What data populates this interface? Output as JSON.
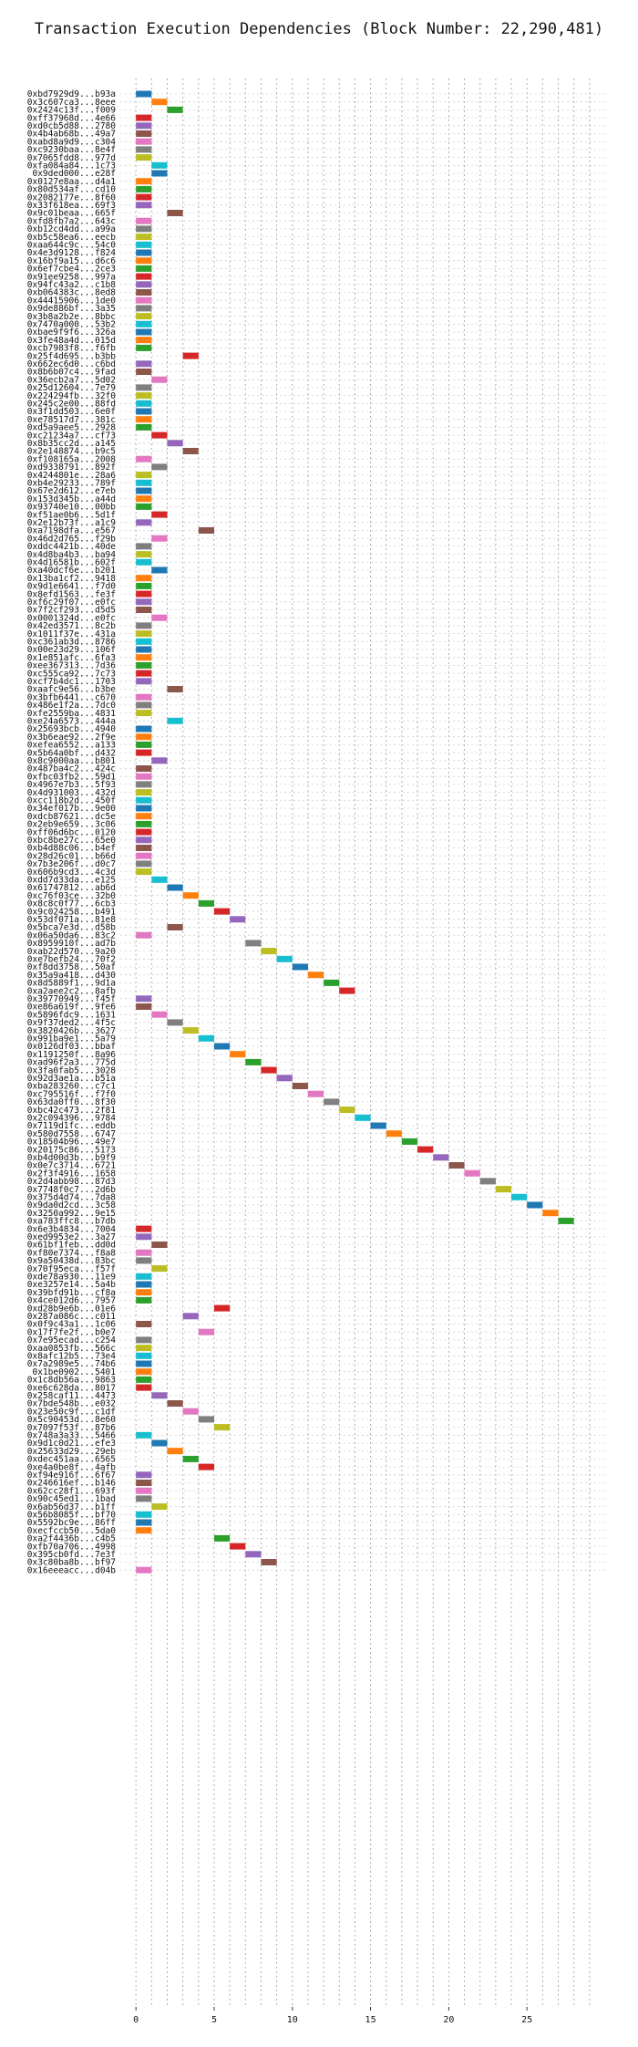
{
  "chart_data": {
    "type": "bar",
    "title": "Transaction Execution Dependencies (Block Number: 22,290,481)",
    "xlabel": "",
    "ylabel": "",
    "xlim": [
      -1,
      30
    ],
    "xticks": [
      0,
      5,
      10,
      15,
      20,
      25
    ],
    "grid": true,
    "bar_width": 1,
    "palette": [
      "#1f77b4",
      "#ff7f0e",
      "#2ca02c",
      "#d62728",
      "#9467bd",
      "#8c564b",
      "#e377c2",
      "#7f7f7f",
      "#bcbd22",
      "#17becf"
    ],
    "transactions": [
      {
        "hash": "0xbd7929d9...b93a",
        "start": 0,
        "color": 0
      },
      {
        "hash": "0x3c607ca3...8eee",
        "start": 1,
        "color": 1
      },
      {
        "hash": "0x2424c13f...f009",
        "start": 2,
        "color": 2
      },
      {
        "hash": "0xff37968d...4e66",
        "start": 0,
        "color": 3
      },
      {
        "hash": "0xd0cb5d88...2780",
        "start": 0,
        "color": 4
      },
      {
        "hash": "0x4b4ab68b...49a7",
        "start": 0,
        "color": 5
      },
      {
        "hash": "0xabd8a9d9...c304",
        "start": 0,
        "color": 6
      },
      {
        "hash": "0xc9230baa...8e4f",
        "start": 0,
        "color": 7
      },
      {
        "hash": "0x7065fdd8...977d",
        "start": 0,
        "color": 8
      },
      {
        "hash": "0xfa084a84...1c73",
        "start": 1,
        "color": 9
      },
      {
        "hash": "0x9ded000...e28f",
        "start": 1,
        "color": 0
      },
      {
        "hash": "0x0127e8aa...d4a1",
        "start": 0,
        "color": 1
      },
      {
        "hash": "0x80d534af...cd10",
        "start": 0,
        "color": 2
      },
      {
        "hash": "0x2082177e...8f60",
        "start": 0,
        "color": 3
      },
      {
        "hash": "0x33f618ea...69f3",
        "start": 0,
        "color": 4
      },
      {
        "hash": "0x9c01beaa...665f",
        "start": 2,
        "color": 5
      },
      {
        "hash": "0xfd8fb7a2...643c",
        "start": 0,
        "color": 6
      },
      {
        "hash": "0xb12cd4dd...a99a",
        "start": 0,
        "color": 7
      },
      {
        "hash": "0xb5c58ea6...eecb",
        "start": 0,
        "color": 8
      },
      {
        "hash": "0xaa644c9c...54c0",
        "start": 0,
        "color": 9
      },
      {
        "hash": "0x4e3d9128...f824",
        "start": 0,
        "color": 0
      },
      {
        "hash": "0x16bf9a15...d6c6",
        "start": 0,
        "color": 1
      },
      {
        "hash": "0x6ef7cbe4...2ce3",
        "start": 0,
        "color": 2
      },
      {
        "hash": "0x91ee9258...997a",
        "start": 0,
        "color": 3
      },
      {
        "hash": "0x94fc43a2...c1b8",
        "start": 0,
        "color": 4
      },
      {
        "hash": "0xb064383c...8ed8",
        "start": 0,
        "color": 5
      },
      {
        "hash": "0x44415906...1de0",
        "start": 0,
        "color": 6
      },
      {
        "hash": "0x9de886bf...3a35",
        "start": 0,
        "color": 7
      },
      {
        "hash": "0x3b8a2b2e...8bbc",
        "start": 0,
        "color": 8
      },
      {
        "hash": "0x7470a000...53b2",
        "start": 0,
        "color": 9
      },
      {
        "hash": "0xbae9f9f6...326a",
        "start": 0,
        "color": 0
      },
      {
        "hash": "0x3fe48a4d...015d",
        "start": 0,
        "color": 1
      },
      {
        "hash": "0xcb7983f8...f6fb",
        "start": 0,
        "color": 2
      },
      {
        "hash": "0x25f4d695...b3bb",
        "start": 3,
        "color": 3
      },
      {
        "hash": "0x662ec6d0...c6bd",
        "start": 0,
        "color": 4
      },
      {
        "hash": "0x8b6b07c4...9fad",
        "start": 0,
        "color": 5
      },
      {
        "hash": "0x36ecb2a7...5d02",
        "start": 1,
        "color": 6
      },
      {
        "hash": "0x25d12604...7e79",
        "start": 0,
        "color": 7
      },
      {
        "hash": "0x224294fb...32f0",
        "start": 0,
        "color": 8
      },
      {
        "hash": "0x245c2e00...88fd",
        "start": 0,
        "color": 9
      },
      {
        "hash": "0x3f1dd503...6e0f",
        "start": 0,
        "color": 0
      },
      {
        "hash": "0xe78517d7...381c",
        "start": 0,
        "color": 1
      },
      {
        "hash": "0xd5a9aee5...2928",
        "start": 0,
        "color": 2
      },
      {
        "hash": "0xc21234a7...cf73",
        "start": 1,
        "color": 3
      },
      {
        "hash": "0x8b35cc2d...a145",
        "start": 2,
        "color": 4
      },
      {
        "hash": "0x2e148874...b9c5",
        "start": 3,
        "color": 5
      },
      {
        "hash": "0xf108165a...2008",
        "start": 0,
        "color": 6
      },
      {
        "hash": "0xd9338791...892f",
        "start": 1,
        "color": 7
      },
      {
        "hash": "0x4244801e...28a6",
        "start": 0,
        "color": 8
      },
      {
        "hash": "0xb4e29233...789f",
        "start": 0,
        "color": 9
      },
      {
        "hash": "0x67e2d612...e7eb",
        "start": 0,
        "color": 0
      },
      {
        "hash": "0x153d345b...a44d",
        "start": 0,
        "color": 1
      },
      {
        "hash": "0x93740e10...00bb",
        "start": 0,
        "color": 2
      },
      {
        "hash": "0xf51ae0b6...5d1f",
        "start": 1,
        "color": 3
      },
      {
        "hash": "0x2e12b73f...a1c9",
        "start": 0,
        "color": 4
      },
      {
        "hash": "0xa7198dfa...e567",
        "start": 4,
        "color": 5
      },
      {
        "hash": "0x46d2d765...f29b",
        "start": 1,
        "color": 6
      },
      {
        "hash": "0xddc4421b...40de",
        "start": 0,
        "color": 7
      },
      {
        "hash": "0x4d8ba4b3...ba94",
        "start": 0,
        "color": 8
      },
      {
        "hash": "0x4d16581b...602f",
        "start": 0,
        "color": 9
      },
      {
        "hash": "0xa40dcf6e...b201",
        "start": 1,
        "color": 0
      },
      {
        "hash": "0x13ba1cf2...9418",
        "start": 0,
        "color": 1
      },
      {
        "hash": "0x9d1e6641...f7d0",
        "start": 0,
        "color": 2
      },
      {
        "hash": "0x8efd1563...fe3f",
        "start": 0,
        "color": 3
      },
      {
        "hash": "0xf6c29f07...e0fc",
        "start": 0,
        "color": 4
      },
      {
        "hash": "0x7f2cf293...d5d5",
        "start": 0,
        "color": 5
      },
      {
        "hash": "0x0001324d...e0fc",
        "start": 1,
        "color": 6
      },
      {
        "hash": "0x42ed3571...8c2b",
        "start": 0,
        "color": 7
      },
      {
        "hash": "0x1011f37e...431a",
        "start": 0,
        "color": 8
      },
      {
        "hash": "0xc361ab3d...8786",
        "start": 0,
        "color": 9
      },
      {
        "hash": "0x00e23d29...106f",
        "start": 0,
        "color": 0
      },
      {
        "hash": "0x1e851afc...6fa3",
        "start": 0,
        "color": 1
      },
      {
        "hash": "0xee367313...7d36",
        "start": 0,
        "color": 2
      },
      {
        "hash": "0xc555ca92...7c73",
        "start": 0,
        "color": 3
      },
      {
        "hash": "0xcf7b4dc1...1703",
        "start": 0,
        "color": 4
      },
      {
        "hash": "0xaafc9e56...b3be",
        "start": 2,
        "color": 5
      },
      {
        "hash": "0x3bfb6441...c670",
        "start": 0,
        "color": 6
      },
      {
        "hash": "0x486e1f2a...7dc0",
        "start": 0,
        "color": 7
      },
      {
        "hash": "0xfe2559ba...4831",
        "start": 0,
        "color": 8
      },
      {
        "hash": "0xe24a6573...444a",
        "start": 2,
        "color": 9
      },
      {
        "hash": "0x25693bcb...4940",
        "start": 0,
        "color": 0
      },
      {
        "hash": "0x3b6eae92...2f9e",
        "start": 0,
        "color": 1
      },
      {
        "hash": "0xefea6552...a133",
        "start": 0,
        "color": 2
      },
      {
        "hash": "0x5b64a0bf...d432",
        "start": 0,
        "color": 3
      },
      {
        "hash": "0x8c9000aa...b801",
        "start": 1,
        "color": 4
      },
      {
        "hash": "0x487ba4c2...424c",
        "start": 0,
        "color": 5
      },
      {
        "hash": "0xfbc03fb2...59d1",
        "start": 0,
        "color": 6
      },
      {
        "hash": "0x4967e7b3...5f93",
        "start": 0,
        "color": 7
      },
      {
        "hash": "0x4d931003...432d",
        "start": 0,
        "color": 8
      },
      {
        "hash": "0xcc118b2d...450f",
        "start": 0,
        "color": 9
      },
      {
        "hash": "0x34ef017b...9e00",
        "start": 0,
        "color": 0
      },
      {
        "hash": "0xdcb87621...dc5e",
        "start": 0,
        "color": 1
      },
      {
        "hash": "0x2eb9e659...3c06",
        "start": 0,
        "color": 2
      },
      {
        "hash": "0xff06d6bc...0120",
        "start": 0,
        "color": 3
      },
      {
        "hash": "0xbc8be27c...65e0",
        "start": 0,
        "color": 4
      },
      {
        "hash": "0xb4d88c06...b4ef",
        "start": 0,
        "color": 5
      },
      {
        "hash": "0x28d26c01...b66d",
        "start": 0,
        "color": 6
      },
      {
        "hash": "0x7b3e206f...d0c7",
        "start": 0,
        "color": 7
      },
      {
        "hash": "0x606b9cd3...4c3d",
        "start": 0,
        "color": 8
      },
      {
        "hash": "0xdd7d33da...e125",
        "start": 1,
        "color": 9
      },
      {
        "hash": "0x61747812...ab6d",
        "start": 2,
        "color": 0
      },
      {
        "hash": "0xc76f03ce...32b0",
        "start": 3,
        "color": 1
      },
      {
        "hash": "0x8c8c0f77...6cb3",
        "start": 4,
        "color": 2
      },
      {
        "hash": "0x9c024258...b491",
        "start": 5,
        "color": 3
      },
      {
        "hash": "0x53df071a...81e8",
        "start": 6,
        "color": 4
      },
      {
        "hash": "0x5bca7e3d...d58b",
        "start": 2,
        "color": 5
      },
      {
        "hash": "0x06a50da6...83c2",
        "start": 0,
        "color": 6
      },
      {
        "hash": "0x8959910f...ad7b",
        "start": 7,
        "color": 7
      },
      {
        "hash": "0xab22d570...9a20",
        "start": 8,
        "color": 8
      },
      {
        "hash": "0xe7befb24...70f2",
        "start": 9,
        "color": 9
      },
      {
        "hash": "0xf8dd3758...50af",
        "start": 10,
        "color": 0
      },
      {
        "hash": "0x35a9a418...d430",
        "start": 11,
        "color": 1
      },
      {
        "hash": "0x8d5889f1...9d1a",
        "start": 12,
        "color": 2
      },
      {
        "hash": "0xa2aee2c2...8afb",
        "start": 13,
        "color": 3
      },
      {
        "hash": "0x39770949...f45f",
        "start": 0,
        "color": 4
      },
      {
        "hash": "0xe86a619f...9fe6",
        "start": 0,
        "color": 5
      },
      {
        "hash": "0x5896fdc9...1631",
        "start": 1,
        "color": 6
      },
      {
        "hash": "0x9f37ded2...4f5c",
        "start": 2,
        "color": 7
      },
      {
        "hash": "0x3820426b...3627",
        "start": 3,
        "color": 8
      },
      {
        "hash": "0x991ba9e1...5a79",
        "start": 4,
        "color": 9
      },
      {
        "hash": "0x0126df03...bbaf",
        "start": 5,
        "color": 0
      },
      {
        "hash": "0x1191250f...8a96",
        "start": 6,
        "color": 1
      },
      {
        "hash": "0xad96f2a3...775d",
        "start": 7,
        "color": 2
      },
      {
        "hash": "0x3fa0fab5...3028",
        "start": 8,
        "color": 3
      },
      {
        "hash": "0x92d3ae1a...b51a",
        "start": 9,
        "color": 4
      },
      {
        "hash": "0xba283260...c7c1",
        "start": 10,
        "color": 5
      },
      {
        "hash": "0xc795516f...f7f0",
        "start": 11,
        "color": 6
      },
      {
        "hash": "0x63da0ff0...8f30",
        "start": 12,
        "color": 7
      },
      {
        "hash": "0xbc42c473...2f81",
        "start": 13,
        "color": 8
      },
      {
        "hash": "0x2c094396...9784",
        "start": 14,
        "color": 9
      },
      {
        "hash": "0x7119d1fc...eddb",
        "start": 15,
        "color": 0
      },
      {
        "hash": "0x580d7558...6747",
        "start": 16,
        "color": 1
      },
      {
        "hash": "0x18504b96...49e7",
        "start": 17,
        "color": 2
      },
      {
        "hash": "0x20175c86...5173",
        "start": 18,
        "color": 3
      },
      {
        "hash": "0xb4d00d3b...b9f9",
        "start": 19,
        "color": 4
      },
      {
        "hash": "0x0e7c3714...6721",
        "start": 20,
        "color": 5
      },
      {
        "hash": "0x2f3f4916...1658",
        "start": 21,
        "color": 6
      },
      {
        "hash": "0x2d4abb98...87d3",
        "start": 22,
        "color": 7
      },
      {
        "hash": "0x7748f0c7...2d6b",
        "start": 23,
        "color": 8
      },
      {
        "hash": "0x375d4d74...7da8",
        "start": 24,
        "color": 9
      },
      {
        "hash": "0x9da0d2cd...3c58",
        "start": 25,
        "color": 0
      },
      {
        "hash": "0x3250a992...9e15",
        "start": 26,
        "color": 1
      },
      {
        "hash": "0xa783ffc8...b7db",
        "start": 27,
        "color": 2
      },
      {
        "hash": "0x6e3b4834...7004",
        "start": 0,
        "color": 3
      },
      {
        "hash": "0xed9953e2...3a27",
        "start": 0,
        "color": 4
      },
      {
        "hash": "0x61bf1feb...dd0d",
        "start": 1,
        "color": 5
      },
      {
        "hash": "0xf80e7374...f8a8",
        "start": 0,
        "color": 6
      },
      {
        "hash": "0x9a50438d...83bc",
        "start": 0,
        "color": 7
      },
      {
        "hash": "0x70f95eca...f57f",
        "start": 1,
        "color": 8
      },
      {
        "hash": "0xde78a930...11e9",
        "start": 0,
        "color": 9
      },
      {
        "hash": "0xe3257e14...5a4b",
        "start": 0,
        "color": 0
      },
      {
        "hash": "0x39bfd91b...cf8a",
        "start": 0,
        "color": 1
      },
      {
        "hash": "0x4ce012d6...7957",
        "start": 0,
        "color": 2
      },
      {
        "hash": "0xd28b9e6b...01e6",
        "start": 5,
        "color": 3
      },
      {
        "hash": "0x287a086c...c011",
        "start": 3,
        "color": 4
      },
      {
        "hash": "0x0f9c43a1...1c06",
        "start": 0,
        "color": 5
      },
      {
        "hash": "0x17f7fe2f...b0e7",
        "start": 4,
        "color": 6
      },
      {
        "hash": "0x7e95ecad...c254",
        "start": 0,
        "color": 7
      },
      {
        "hash": "0xaa0853fb...566c",
        "start": 0,
        "color": 8
      },
      {
        "hash": "0x8afc12b5...73e4",
        "start": 0,
        "color": 9
      },
      {
        "hash": "0x7a2989e5...74b6",
        "start": 0,
        "color": 0
      },
      {
        "hash": "0x1be0902...5401",
        "start": 0,
        "color": 1
      },
      {
        "hash": "0x1c8db56a...9863",
        "start": 0,
        "color": 2
      },
      {
        "hash": "0xe6c628da...8017",
        "start": 0,
        "color": 3
      },
      {
        "hash": "0x258caf11...4473",
        "start": 1,
        "color": 4
      },
      {
        "hash": "0x7bde548b...e032",
        "start": 2,
        "color": 5
      },
      {
        "hash": "0x23e50c9f...c1df",
        "start": 3,
        "color": 6
      },
      {
        "hash": "0x5c90453d...8e60",
        "start": 4,
        "color": 7
      },
      {
        "hash": "0x7097f53f...87b6",
        "start": 5,
        "color": 8
      },
      {
        "hash": "0x748a3a33...5466",
        "start": 0,
        "color": 9
      },
      {
        "hash": "0x9d1c0d21...efe3",
        "start": 1,
        "color": 0
      },
      {
        "hash": "0x25633d29...29eb",
        "start": 2,
        "color": 1
      },
      {
        "hash": "0xdec451aa...6565",
        "start": 3,
        "color": 2
      },
      {
        "hash": "0xe4a0be8f...4afb",
        "start": 4,
        "color": 3
      },
      {
        "hash": "0xf94e916f...6f67",
        "start": 0,
        "color": 4
      },
      {
        "hash": "0x246616ef...b146",
        "start": 0,
        "color": 5
      },
      {
        "hash": "0x62cc28f1...693f",
        "start": 0,
        "color": 6
      },
      {
        "hash": "0x90c45ed1...1bad",
        "start": 0,
        "color": 7
      },
      {
        "hash": "0x6ab56d37...b1ff",
        "start": 1,
        "color": 8
      },
      {
        "hash": "0x56b8085f...bf70",
        "start": 0,
        "color": 9
      },
      {
        "hash": "0x5592bc9e...86ff",
        "start": 0,
        "color": 0
      },
      {
        "hash": "0xecfccb50...5da0",
        "start": 0,
        "color": 1
      },
      {
        "hash": "0xa2f4436b...c4b5",
        "start": 5,
        "color": 2
      },
      {
        "hash": "0xfb70a706...4998",
        "start": 6,
        "color": 3
      },
      {
        "hash": "0x395cb0fd...7e3f",
        "start": 7,
        "color": 4
      },
      {
        "hash": "0x3c80ba8b...bf97",
        "start": 8,
        "color": 5
      },
      {
        "hash": "0x16eeeacc...d04b",
        "start": 0,
        "color": 6
      }
    ]
  }
}
